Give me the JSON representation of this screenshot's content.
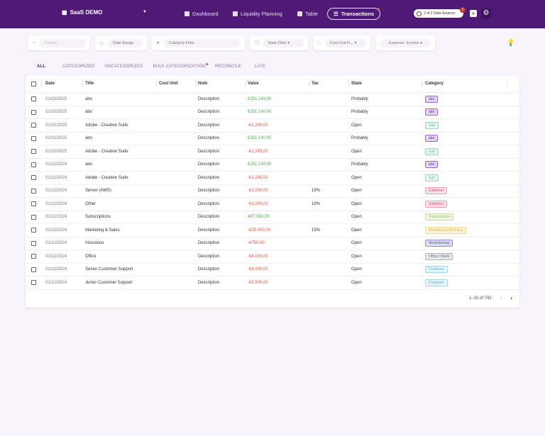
{
  "header": {
    "brand": "SaaS DEMO",
    "nav": [
      {
        "label": "Dashboard"
      },
      {
        "label": "Liquidity Planning"
      },
      {
        "label": "Table"
      },
      {
        "label": "Transactions",
        "active": true
      }
    ],
    "data_sources": "2 of 2 Data Sources",
    "notification_count": "1",
    "accent": "#4f1a76"
  },
  "filters": {
    "search": "Search",
    "date_range": "Date Range",
    "category": "Category Filter",
    "state": "State Filter",
    "cost_unit": "Cost Unit Fi...",
    "type": "Expense, Income"
  },
  "tabs": [
    "ALL",
    "CATEGORIZED",
    "UNCATEGORIZED",
    "BULK CATEGORIZATION",
    "RECONCILE",
    "LATE"
  ],
  "table": {
    "columns": [
      "Date",
      "Title",
      "Cost Unit",
      "Note",
      "Value",
      "Tax",
      "State",
      "Category"
    ],
    "rows": [
      [
        "01/03/2025",
        "abo",
        "",
        "Description",
        "€151.140,00",
        "",
        "Probably",
        "abo"
      ],
      [
        "01/02/2025",
        "abo",
        "",
        "Description",
        "€151.140,00",
        "",
        "Probably",
        "abo"
      ],
      [
        "01/02/2025",
        "Adobe - Creative Suite",
        "",
        "Description",
        "-€1.245,00",
        "",
        "Open",
        "Sub"
      ],
      [
        "01/01/2025",
        "abo",
        "",
        "Description",
        "€151.140,00",
        "",
        "Probably",
        "abo"
      ],
      [
        "01/01/2025",
        "Adobe - Creative Suite",
        "",
        "Description",
        "-€1.245,00",
        "",
        "Open",
        "Sub"
      ],
      [
        "01/12/2024",
        "abo",
        "",
        "Description",
        "€151.140,00",
        "",
        "Probably",
        "abo"
      ],
      [
        "01/12/2024",
        "Adobe - Creative Suite",
        "",
        "Description",
        "-€1.245,00",
        "",
        "Open",
        "Sub"
      ],
      [
        "01/12/2024",
        "Server (AWS)",
        "",
        "Description",
        "-€1.000,00",
        "19%",
        "Open",
        "Zulieferer"
      ],
      [
        "01/12/2024",
        "Other",
        "",
        "Description",
        "-€1.000,00",
        "19%",
        "Open",
        "Zulieferer"
      ],
      [
        "01/12/2024",
        "Subscriptions",
        "",
        "Description",
        "€47.058,20",
        "",
        "Open",
        "Subscriptions"
      ],
      [
        "01/12/2024",
        "Marketing & Sales",
        "",
        "Description",
        "-€25.000,00",
        "19%",
        "Open",
        "Marketing & Werbung"
      ],
      [
        "01/12/2024",
        "Insurance",
        "",
        "Description",
        "-€750,00",
        "",
        "Open",
        "Versicherung"
      ],
      [
        "01/12/2024",
        "Office",
        "",
        "Description",
        "-€8.000,00",
        "",
        "Open",
        "Office / Miete"
      ],
      [
        "01/12/2024",
        "Senior Customer Support",
        "",
        "Description",
        "-€8.000,00",
        "",
        "Open",
        "Customer"
      ],
      [
        "01/12/2024",
        "Junior Customer Support",
        "",
        "Description",
        "-€5.500,00",
        "",
        "Open",
        "Customer"
      ]
    ],
    "category_colors": {
      "abo": [
        "#e4d4ef",
        "#9b6bc4",
        "#6a3d8f"
      ],
      "Sub": [
        "#e6f4f1",
        "#9fd3c7",
        "#7fbfb0"
      ],
      "Zulieferer": [
        "#fde0e6",
        "#f1a0b3",
        "#d94c72"
      ],
      "Subscriptions": [
        "#eef7e4",
        "#c3e2a3",
        "#9cc97a"
      ],
      "Marketing & Werbung": [
        "#fff4d6",
        "#f5d98a",
        "#e0b34a"
      ],
      "Versicherung": [
        "#dcdcf5",
        "#8f8fd6",
        "#5555aa"
      ],
      "Office / Miete": [
        "#e6e8ea",
        "#b0b5ba",
        "#6c737a"
      ],
      "Customer": [
        "#e2f5fb",
        "#9ed8ea",
        "#5ab5d0"
      ]
    },
    "pagination": "1–15 of 742"
  }
}
